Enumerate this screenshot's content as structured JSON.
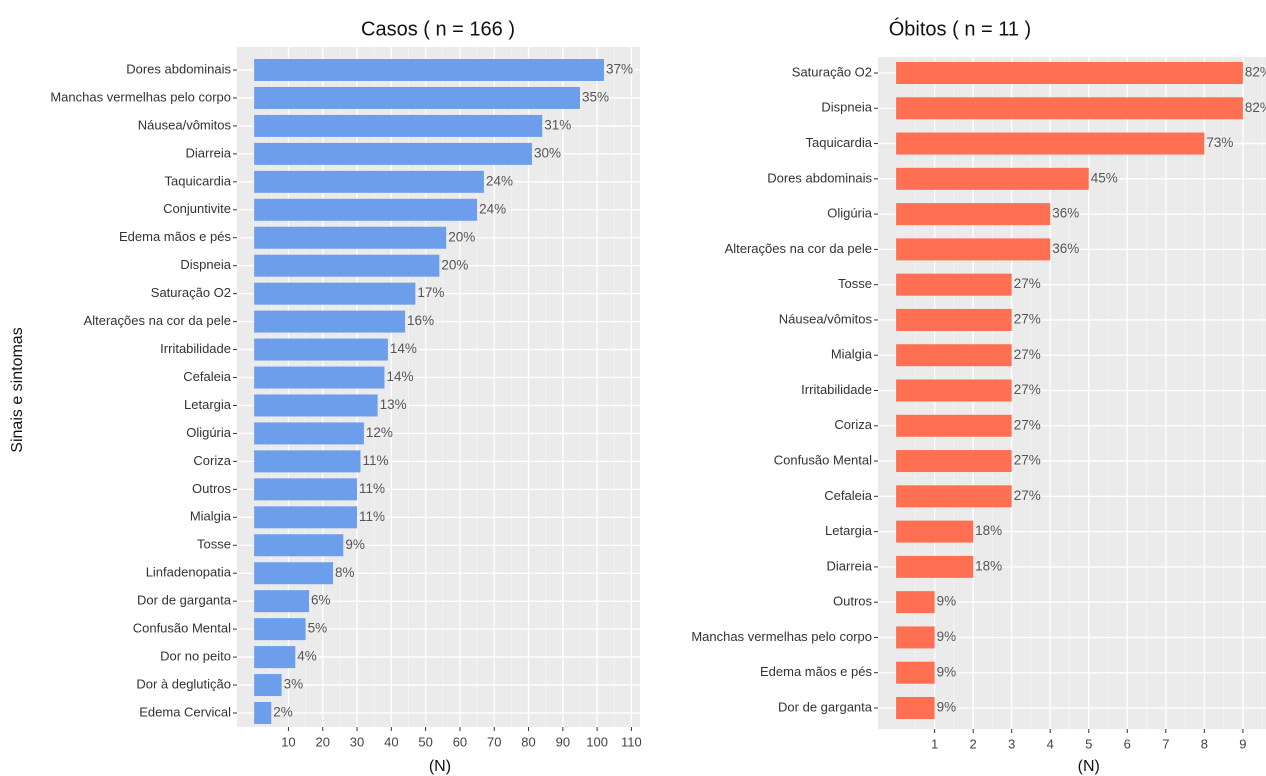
{
  "chart_data": [
    {
      "type": "bar",
      "orientation": "horizontal",
      "title": "Casos ( n =  166 )",
      "xlabel": "(N)",
      "ylabel": "Sinais e sintomas",
      "color": "#6d9eeb",
      "categories": [
        "Dores abdominais",
        "Manchas vermelhas pelo corpo",
        "Náusea/vômitos",
        "Diarreia",
        "Taquicardia",
        "Conjuntivite",
        "Edema mãos e pés",
        "Dispneia",
        "Saturação O2",
        "Alterações na cor da pele",
        "Irritabilidade",
        "Cefaleia",
        "Letargia",
        "Oligúria",
        "Coriza",
        "Outros",
        "Mialgia",
        "Tosse",
        "Linfadenopatia",
        "Dor de garganta",
        "Confusão Mental",
        "Dor no peito",
        "Dor à deglutição",
        "Edema Cervical"
      ],
      "values": [
        102,
        95,
        84,
        81,
        67,
        65,
        56,
        54,
        47,
        44,
        39,
        38,
        36,
        32,
        31,
        30,
        30,
        26,
        23,
        16,
        15,
        12,
        8,
        5
      ],
      "bar_labels": [
        "37%",
        "35%",
        "31%",
        "30%",
        "24%",
        "24%",
        "20%",
        "20%",
        "17%",
        "16%",
        "14%",
        "14%",
        "13%",
        "12%",
        "11%",
        "11%",
        "11%",
        "9%",
        "8%",
        "6%",
        "5%",
        "4%",
        "3%",
        "2%"
      ],
      "xlim": [
        -5,
        112.5
      ],
      "xticks": [
        10,
        20,
        30,
        40,
        50,
        60,
        70,
        80,
        90,
        100,
        110
      ],
      "grid": true
    },
    {
      "type": "bar",
      "orientation": "horizontal",
      "title": "Óbitos ( n =  11 )",
      "xlabel": "(N)",
      "color": "#ff7052",
      "categories": [
        "Saturação O2",
        "Dispneia",
        "Taquicardia",
        "Dores abdominais",
        "Oligúria",
        "Alterações na cor da pele",
        "Tosse",
        "Náusea/vômitos",
        "Mialgia",
        "Irritabilidade",
        "Coriza",
        "Confusão Mental",
        "Cefaleia",
        "Letargia",
        "Diarreia",
        "Outros",
        "Manchas vermelhas pelo corpo",
        "Edema mãos e pés",
        "Dor de garganta"
      ],
      "values": [
        9,
        9,
        8,
        5,
        4,
        4,
        3,
        3,
        3,
        3,
        3,
        3,
        3,
        2,
        2,
        1,
        1,
        1,
        1
      ],
      "bar_labels": [
        "82%",
        "82%",
        "73%",
        "45%",
        "36%",
        "36%",
        "27%",
        "27%",
        "27%",
        "27%",
        "27%",
        "27%",
        "27%",
        "18%",
        "18%",
        "9%",
        "9%",
        "9%",
        "9%"
      ],
      "xlim": [
        -0.47,
        9.6
      ],
      "xticks": [
        1,
        2,
        3,
        4,
        5,
        6,
        7,
        8,
        9
      ],
      "grid": true
    }
  ]
}
